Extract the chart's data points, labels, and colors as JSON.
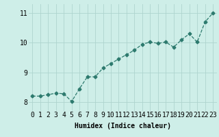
{
  "x": [
    0,
    1,
    2,
    3,
    4,
    5,
    6,
    7,
    8,
    9,
    10,
    11,
    12,
    13,
    14,
    15,
    16,
    17,
    18,
    19,
    20,
    21,
    22,
    23
  ],
  "y": [
    8.2,
    8.2,
    8.25,
    8.3,
    8.28,
    8.02,
    8.45,
    8.85,
    8.85,
    9.15,
    9.3,
    9.45,
    9.6,
    9.75,
    9.95,
    10.02,
    9.98,
    10.02,
    9.85,
    10.1,
    10.3,
    10.02,
    10.7,
    11.0
  ],
  "line_color": "#2d7a6e",
  "marker": "D",
  "marker_size": 2.5,
  "bg_color": "#ceeee8",
  "grid_color": "#aed4ce",
  "xlabel": "Humidex (Indice chaleur)",
  "ylim": [
    7.7,
    11.3
  ],
  "xlim": [
    -0.5,
    23.5
  ],
  "yticks": [
    8,
    9,
    10,
    11
  ],
  "xticks": [
    0,
    1,
    2,
    3,
    4,
    5,
    6,
    7,
    8,
    9,
    10,
    11,
    12,
    13,
    14,
    15,
    16,
    17,
    18,
    19,
    20,
    21,
    22,
    23
  ],
  "xlabel_fontsize": 7,
  "tick_fontsize": 7,
  "linewidth": 0.9
}
